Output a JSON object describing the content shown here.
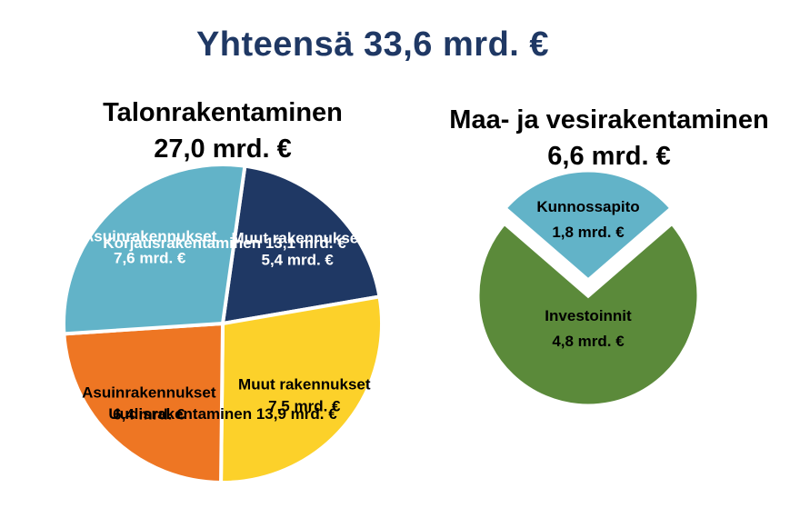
{
  "title": "Yhteensä 33,6 mrd. €",
  "chart_data": [
    {
      "type": "pie",
      "title": "Talonrakentaminen",
      "total_label": "27,0 mrd. €",
      "group_labels": [
        {
          "text": "Korjausrakentaminen 13,1 mrd. €",
          "color": "#ffffff"
        },
        {
          "text": "Uudisrakentaminen 13,9 mrd. €",
          "color": "#000000"
        }
      ],
      "slices": [
        {
          "group": "Korjausrakentaminen",
          "label": "Muut rakennukset",
          "value": 5.4,
          "value_label": "5,4 mrd. €",
          "color": "#1f3864",
          "text_color": "#ffffff"
        },
        {
          "group": "Uudisrakentaminen",
          "label": "Muut rakennukset",
          "value": 7.5,
          "value_label": "7,5 mrd. €",
          "color": "#fcd12a",
          "text_color": "#000000"
        },
        {
          "group": "Uudisrakentaminen",
          "label": "Asuinrakennukset",
          "value": 6.4,
          "value_label": "6,4 mrd. €",
          "color": "#ee7623",
          "text_color": "#000000"
        },
        {
          "group": "Korjausrakentaminen",
          "label": "Asuinrakennukset",
          "value": 7.6,
          "value_label": "7,6 mrd. €",
          "color": "#62b3c8",
          "text_color": "#ffffff"
        }
      ]
    },
    {
      "type": "pie",
      "title": "Maa- ja vesirakentaminen",
      "total_label": "6,6 mrd. €",
      "slices": [
        {
          "label": "Investoinnit",
          "value": 4.8,
          "value_label": "4,8 mrd. €",
          "color": "#5b8a3a",
          "text_color": "#000000"
        },
        {
          "label": "Kunnossapito",
          "value": 1.8,
          "value_label": "1,8 mrd. €",
          "color": "#62b3c8",
          "text_color": "#000000"
        }
      ]
    }
  ]
}
